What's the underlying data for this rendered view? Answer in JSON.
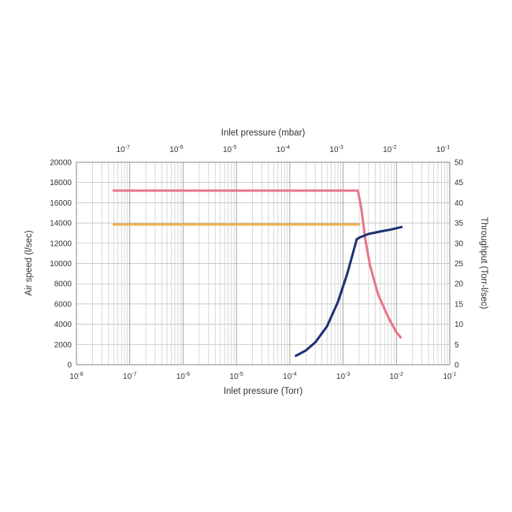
{
  "chart_data": {
    "type": "line",
    "title": "",
    "x_top": {
      "label": "Inlet pressure (mbar)",
      "scale": "log",
      "ticks": [
        {
          "base": "10",
          "exp": "-7"
        },
        {
          "base": "10",
          "exp": "-6"
        },
        {
          "base": "10",
          "exp": "-5"
        },
        {
          "base": "10",
          "exp": "-4"
        },
        {
          "base": "10",
          "exp": "-3"
        },
        {
          "base": "10",
          "exp": "-2"
        },
        {
          "base": "10",
          "exp": "-1"
        }
      ]
    },
    "x_bottom": {
      "label": "Inlet pressure (Torr)",
      "scale": "log",
      "range": [
        1e-08,
        0.1
      ],
      "ticks": [
        {
          "base": "10",
          "exp": "-8"
        },
        {
          "base": "10",
          "exp": "-7"
        },
        {
          "base": "10",
          "exp": "-6"
        },
        {
          "base": "10",
          "exp": "-5"
        },
        {
          "base": "10",
          "exp": "-4"
        },
        {
          "base": "10",
          "exp": "-3"
        },
        {
          "base": "10",
          "exp": "-2"
        },
        {
          "base": "10",
          "exp": "-1"
        }
      ]
    },
    "y_left": {
      "label": "Air speed (l/sec)",
      "range": [
        0,
        20000
      ],
      "ticks": [
        "0",
        "2000",
        "4000",
        "6000",
        "8000",
        "10000",
        "12000",
        "14000",
        "16000",
        "18000",
        "20000"
      ]
    },
    "y_right": {
      "label": "Throughput (Torr-l/sec)",
      "range": [
        0,
        50
      ],
      "ticks": [
        "0",
        "5",
        "10",
        "15",
        "20",
        "25",
        "30",
        "35",
        "40",
        "45",
        "50"
      ]
    },
    "grid": true,
    "series": [
      {
        "axis": "left",
        "color": "#e8748a",
        "x": [
          5e-08,
          1e-06,
          1e-05,
          0.0001,
          0.001,
          0.0019,
          0.0022,
          0.0026,
          0.0032,
          0.0045,
          0.007,
          0.01,
          0.012
        ],
        "y": [
          17200,
          17200,
          17200,
          17200,
          17200,
          17200,
          15400,
          12400,
          9800,
          7000,
          4700,
          3200,
          2700
        ]
      },
      {
        "axis": "left",
        "color": "#f0b050",
        "x": [
          5e-08,
          1e-06,
          1e-05,
          0.0001,
          0.001,
          0.002
        ],
        "y": [
          13850,
          13850,
          13850,
          13850,
          13850,
          13850
        ]
      },
      {
        "axis": "right",
        "color": "#1e2f73",
        "x": [
          0.00013,
          0.0002,
          0.0003,
          0.0005,
          0.0008,
          0.0012,
          0.0016,
          0.0018,
          0.0021,
          0.003,
          0.005,
          0.008,
          0.0125
        ],
        "y": [
          2.2,
          3.5,
          5.5,
          9.5,
          15.5,
          22.5,
          28.5,
          31.0,
          31.5,
          32.3,
          32.9,
          33.4,
          34.0
        ]
      }
    ]
  }
}
